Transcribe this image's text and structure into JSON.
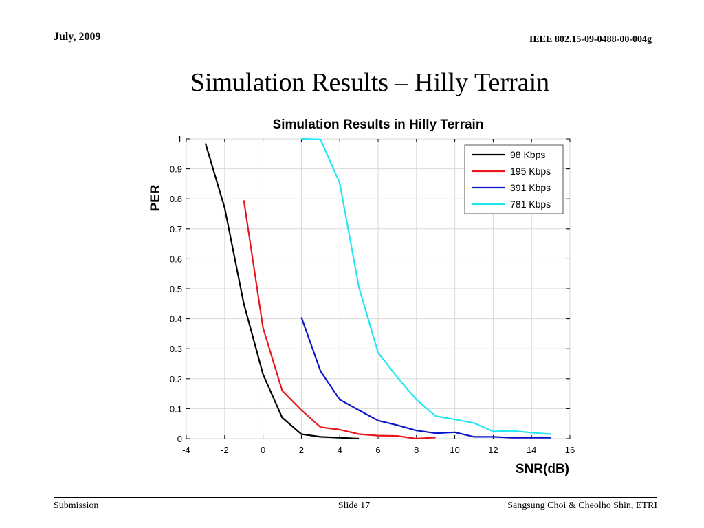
{
  "slide": {
    "date": "July,  2009",
    "doc_id": "IEEE 802.15-09-0488-00-004g",
    "title": "Simulation Results – Hilly Terrain",
    "footer_left": "Submission",
    "footer_center": "Slide 17",
    "footer_right": "Sangsung Choi & Cheolho Shin, ETRI"
  },
  "chart_data": {
    "type": "line",
    "title": "Simulation Results in Hilly Terrain",
    "xlabel": "SNR(dB)",
    "ylabel": "PER",
    "xlim": [
      -4,
      16
    ],
    "ylim": [
      0,
      1
    ],
    "xticks": [
      -4,
      -2,
      0,
      2,
      4,
      6,
      8,
      10,
      12,
      14,
      16
    ],
    "yticks": [
      0,
      0.1,
      0.2,
      0.3,
      0.4,
      0.5,
      0.6,
      0.7,
      0.8,
      0.9,
      1
    ],
    "grid": true,
    "legend_position": "top-right",
    "series": [
      {
        "name": "98 Kbps",
        "color": "#000000",
        "x": [
          -3,
          -2,
          -1,
          0,
          1,
          2,
          3,
          4,
          5
        ],
        "y": [
          0.985,
          0.77,
          0.45,
          0.215,
          0.07,
          0.015,
          0.006,
          0.003,
          0.0
        ]
      },
      {
        "name": "195 Kbps",
        "color": "#e8151b",
        "x": [
          -1,
          0,
          1,
          2,
          3,
          4,
          5,
          6,
          7,
          8,
          9
        ],
        "y": [
          0.795,
          0.37,
          0.16,
          0.095,
          0.038,
          0.03,
          0.015,
          0.01,
          0.009,
          0.0,
          0.004
        ]
      },
      {
        "name": "391 Kbps",
        "color": "#0b14c8",
        "x": [
          2,
          3,
          4,
          5,
          6,
          7,
          8,
          9,
          10,
          11,
          12,
          13,
          14,
          15
        ],
        "y": [
          0.405,
          0.225,
          0.13,
          0.095,
          0.06,
          0.045,
          0.027,
          0.018,
          0.021,
          0.006,
          0.006,
          0.003,
          0.003,
          0.003
        ]
      },
      {
        "name": "781 Kbps",
        "color": "#22e6f2",
        "x": [
          2,
          3,
          4,
          5,
          6,
          7,
          8,
          9,
          10,
          11,
          12,
          13,
          14,
          15
        ],
        "y": [
          1.0,
          0.998,
          0.852,
          0.505,
          0.287,
          0.205,
          0.13,
          0.075,
          0.064,
          0.052,
          0.024,
          0.026,
          0.02,
          0.015
        ]
      }
    ]
  }
}
